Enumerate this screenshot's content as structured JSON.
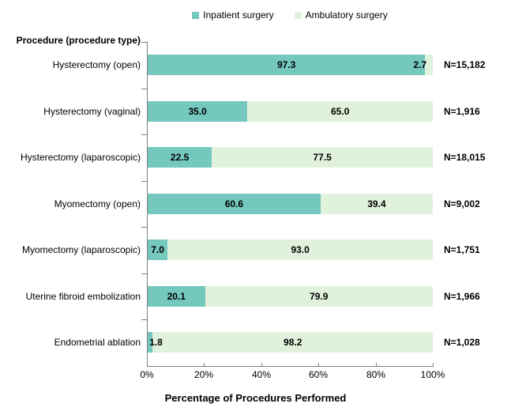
{
  "legend": {
    "items": [
      {
        "label": "Inpatient surgery",
        "color": "#74C8BE"
      },
      {
        "label": "Ambulatory surgery",
        "color": "#E1F2DC"
      }
    ]
  },
  "y_axis_header": "Procedure (procedure type)",
  "chart_data": {
    "type": "bar",
    "orientation": "horizontal",
    "stacked": true,
    "title": "",
    "xlabel": "Percentage of Procedures Performed",
    "ylabel": "Procedure (procedure type)",
    "xlim": [
      0,
      100
    ],
    "x_tick_labels": [
      "0%",
      "20%",
      "40%",
      "60%",
      "80%",
      "100%"
    ],
    "x_tick_values": [
      0,
      20,
      40,
      60,
      80,
      100
    ],
    "legend_position": "top",
    "grid": false,
    "categories": [
      "Hysterectomy (open)",
      "Hysterectomy (vaginal)",
      "Hysterectomy (laparoscopic)",
      "Myomectomy (open)",
      "Myomectomy (laparoscopic)",
      "Uterine fibroid embolization",
      "Endometrial ablation"
    ],
    "series": [
      {
        "name": "Inpatient surgery",
        "color": "#74C8BE",
        "values": [
          97.3,
          35.0,
          22.5,
          60.6,
          7.0,
          20.1,
          1.8
        ]
      },
      {
        "name": "Ambulatory surgery",
        "color": "#E1F2DC",
        "values": [
          2.7,
          65.0,
          77.5,
          39.4,
          93.0,
          79.9,
          98.2
        ]
      }
    ],
    "n_labels": [
      "N=15,182",
      "N=1,916",
      "N=18,015",
      "N=9,002",
      "N=1,751",
      "N=1,966",
      "N=1,028"
    ],
    "axis_color": "#808080"
  }
}
